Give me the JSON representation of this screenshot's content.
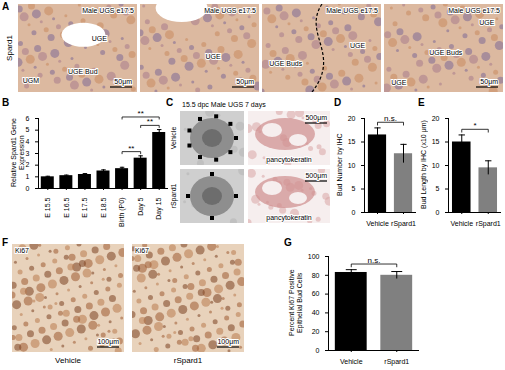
{
  "chart_data": [
    {
      "panel_label": "B",
      "type": "bar",
      "y_label": "Relative Spard1 Gene Expression",
      "categories": [
        "E 15.5",
        "E 16.5",
        "E 17.5",
        "E 18.5",
        "Birth (P0)",
        "Day 5",
        "Day 15"
      ],
      "values": [
        1.0,
        1.1,
        1.2,
        1.5,
        1.7,
        2.6,
        4.8
      ],
      "errors": [
        0.05,
        0.05,
        0.08,
        0.1,
        0.12,
        0.2,
        0.25
      ],
      "color": "#000000",
      "ylim": [
        0,
        6
      ],
      "yticks": [
        0,
        1,
        2,
        3,
        4,
        5,
        6
      ],
      "annotations": [
        {
          "text": "**",
          "from": "Birth (P0)",
          "to": "Day 15"
        },
        {
          "text": "**",
          "from": "Birth (P0)",
          "to": "Day 5"
        },
        {
          "text": "**",
          "from": "Day 5",
          "to": "Day 15"
        }
      ]
    },
    {
      "panel_label": "D",
      "type": "bar",
      "y_label": "Bud Number by IHC",
      "categories": [
        "Vehicle",
        "rSpard1"
      ],
      "values": [
        16.5,
        12.5
      ],
      "errors": [
        1.5,
        2.0
      ],
      "colors": [
        "#000000",
        "#808080"
      ],
      "ylim": [
        0,
        20
      ],
      "yticks": [
        0,
        5,
        10,
        15,
        20
      ],
      "annotations": [
        {
          "text": "n.s.",
          "from": "Vehicle",
          "to": "rSpard1"
        }
      ]
    },
    {
      "panel_label": "E",
      "type": "bar",
      "y_label": "Bud Length by IHC (x10 μm)",
      "categories": [
        "Vehicle",
        "rSpard1"
      ],
      "values": [
        15.0,
        9.5
      ],
      "errors": [
        1.5,
        1.5
      ],
      "colors": [
        "#000000",
        "#808080"
      ],
      "ylim": [
        0,
        20
      ],
      "yticks": [
        0,
        5,
        10,
        15,
        20
      ],
      "annotations": [
        {
          "text": "*",
          "from": "Vehicle",
          "to": "rSpard1"
        }
      ]
    },
    {
      "panel_label": "G",
      "type": "bar",
      "y_label": "Percent Ki67 Positive Epithelial Bud Cells",
      "categories": [
        "Vehicle",
        "rSpard1"
      ],
      "values": [
        83,
        80
      ],
      "errors": [
        3,
        4
      ],
      "colors": [
        "#000000",
        "#808080"
      ],
      "ylim": [
        0,
        100
      ],
      "yticks": [
        0,
        20,
        40,
        60,
        80,
        100
      ],
      "annotations": [
        {
          "text": "n.s.",
          "from": "Vehicle",
          "to": "rSpard1"
        }
      ]
    }
  ],
  "image_panels": [
    {
      "panel_label": "A",
      "row_label": "Spard1",
      "tiles": [
        {
          "title": "Male UGS e17.5",
          "labels": [
            "UGE",
            "UGM",
            "UGE Bud"
          ],
          "scale_bar": "50μm"
        },
        {
          "title": "Male UGS e17.5",
          "labels": [
            "UGE"
          ],
          "scale_bar": "50μm"
        },
        {
          "title": "Male UGS e17.5",
          "labels": [
            "UGE",
            "UGE Buds"
          ]
        },
        {
          "title": "Male UGS e17.5",
          "labels": [
            "UGE",
            "UGE Buds",
            "UGE"
          ],
          "scale_bar": "50μm"
        }
      ]
    },
    {
      "panel_label": "C",
      "title": "15.5 dpc Male UGS 7 days",
      "rows": [
        {
          "label": "Vehicle",
          "stain": "pancytokeratin",
          "scale_bar": "500μm"
        },
        {
          "label": "rSpard1",
          "stain": "pancytokeratin",
          "scale_bar": "500μm"
        }
      ]
    },
    {
      "panel_label": "F",
      "tiles": [
        {
          "stain": "Ki67",
          "label": "Vehicle",
          "scale_bar": "100μm"
        },
        {
          "stain": "Ki67",
          "label": "rSpard1",
          "scale_bar": "100μm"
        }
      ]
    }
  ]
}
